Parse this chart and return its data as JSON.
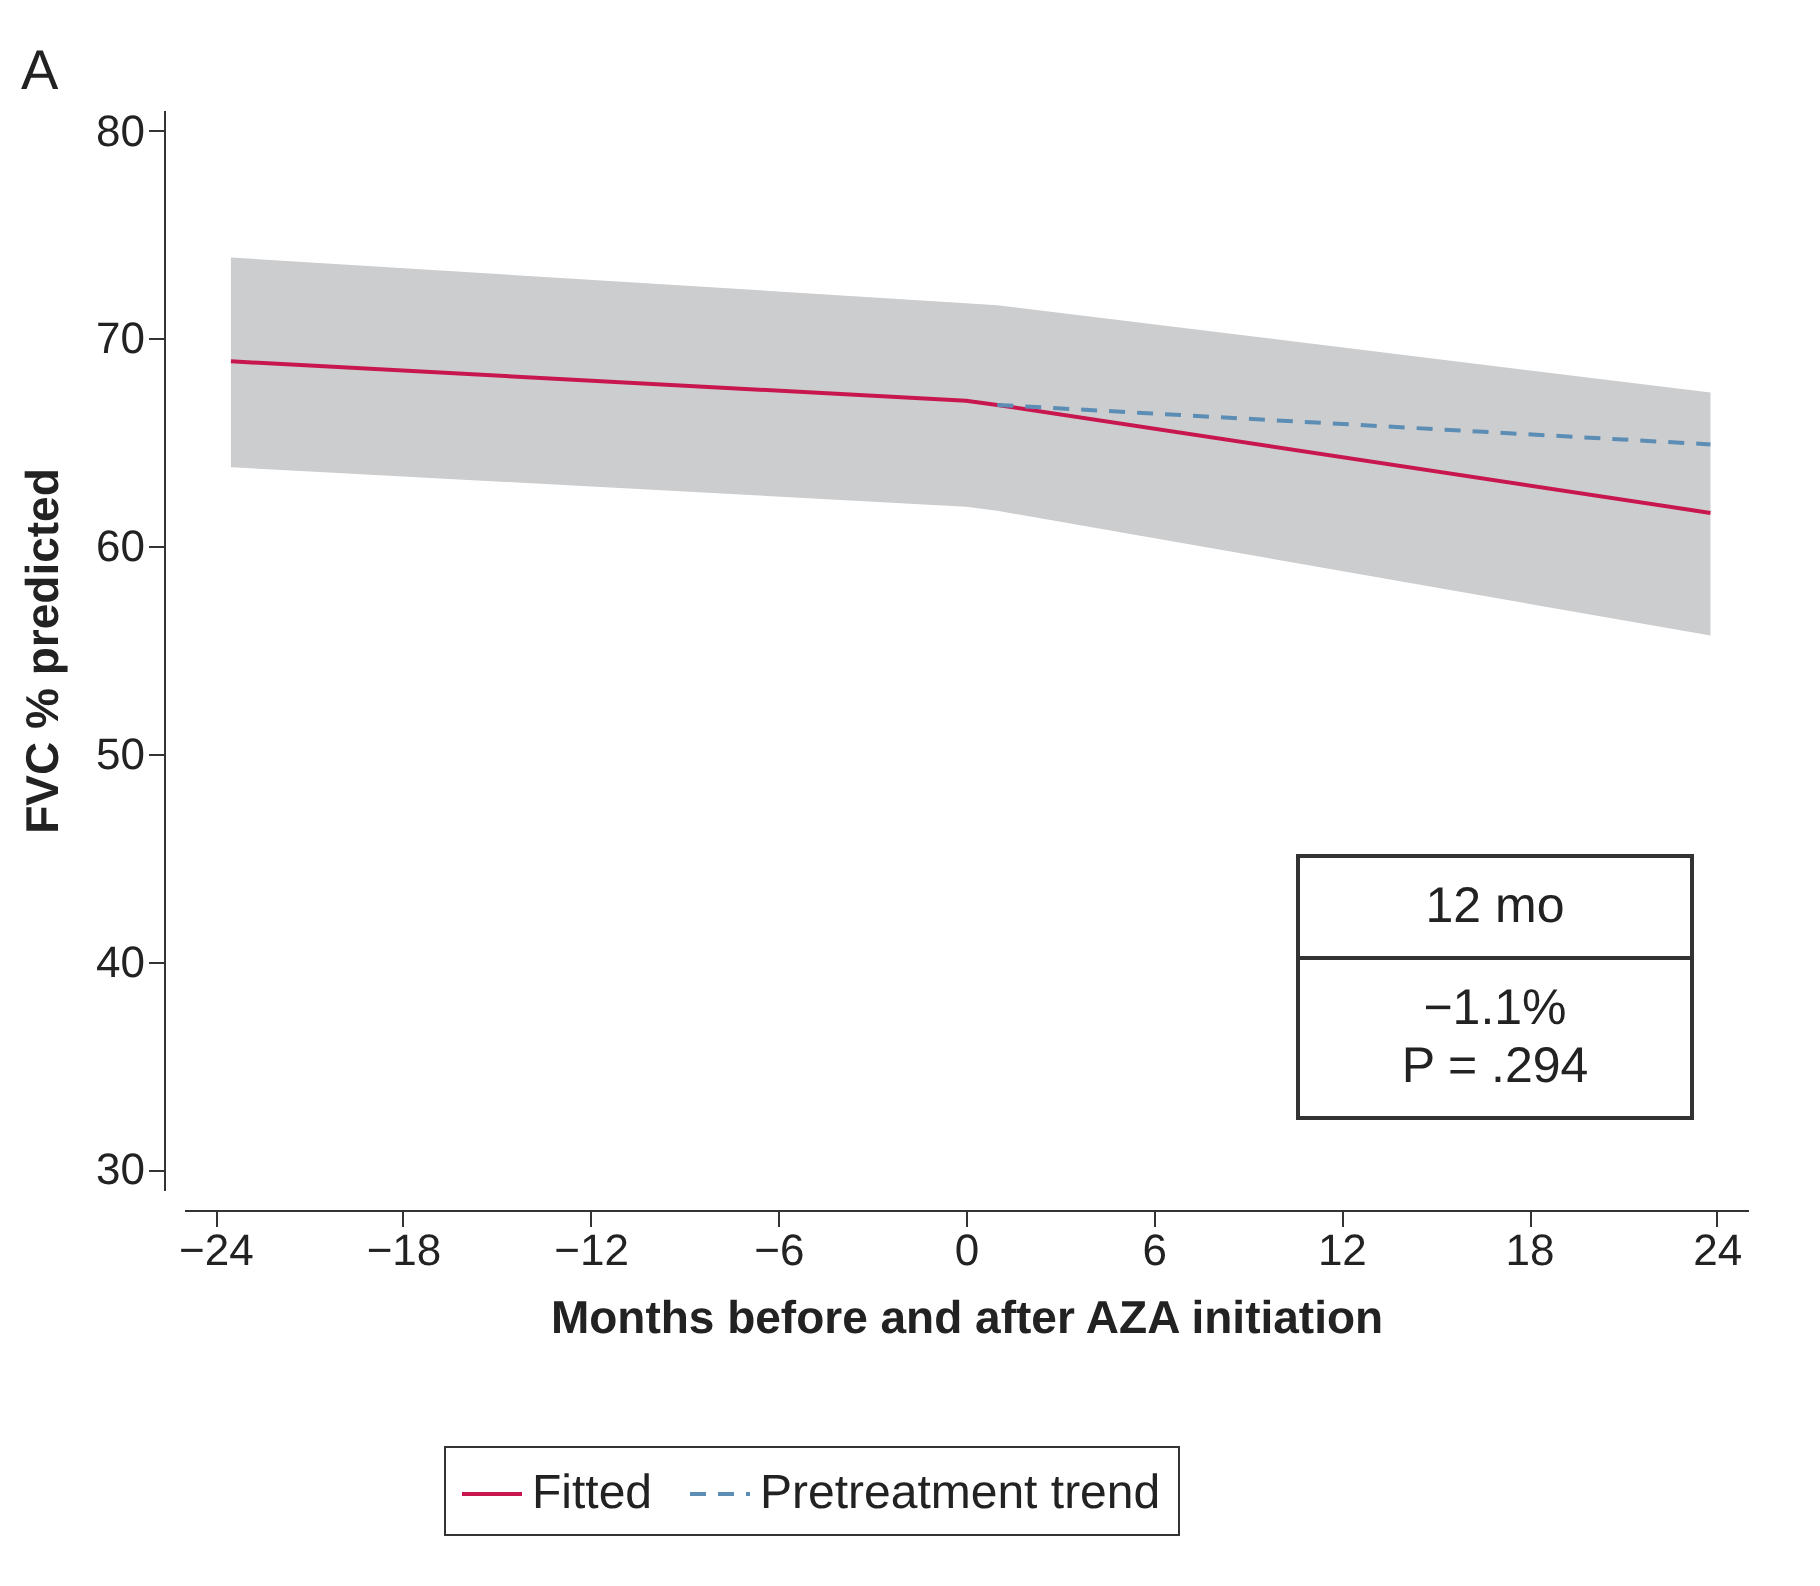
{
  "chart_data": {
    "type": "line",
    "title": "A",
    "xlabel": "Months before and after AZA initiation",
    "ylabel": "FVC % predicted",
    "xlim": [
      -25,
      25
    ],
    "xticks": [
      -24,
      -18,
      -12,
      -6,
      0,
      6,
      12,
      18,
      24
    ],
    "ylim": [
      29,
      81
    ],
    "yticks": [
      30,
      40,
      50,
      60,
      70,
      80
    ],
    "grid": false,
    "legend": "bottom",
    "annotations": [
      "12 mo",
      "−1.1%",
      "P = .294"
    ],
    "series": [
      {
        "name": "Fitted",
        "color": "#c8174f",
        "line_style": "solid",
        "x": [
          -23.5,
          0,
          1,
          23.8
        ],
        "values": [
          68.9,
          67,
          66.8,
          61.6
        ],
        "lower": [
          63.8,
          61.9,
          61.7,
          55.7
        ],
        "upper": [
          73.9,
          71.7,
          71.6,
          67.4
        ]
      },
      {
        "name": "Pretreatment trend",
        "color": "#5b8db5",
        "line_style": "dashed",
        "x": [
          1,
          23.8
        ],
        "values": [
          66.8,
          64.9
        ]
      }
    ]
  }
}
